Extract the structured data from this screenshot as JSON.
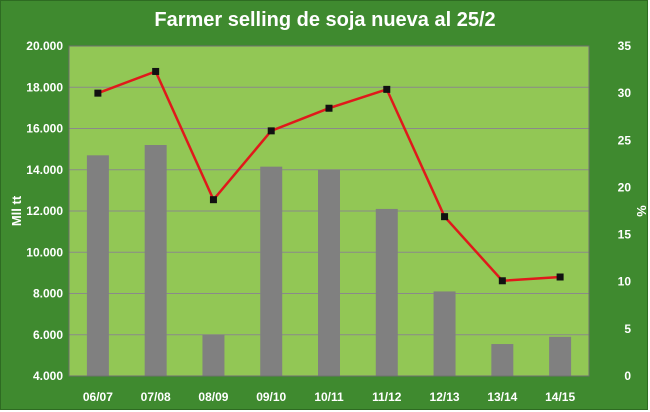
{
  "chart_data": {
    "type": "bar",
    "title": "Farmer selling de soja nueva al 25/2",
    "ylabel": "Mll tt",
    "y2label": "%",
    "categories": [
      "06/07",
      "07/08",
      "08/09",
      "09/10",
      "10/11",
      "11/12",
      "12/13",
      "13/14",
      "14/15"
    ],
    "ylim": [
      4000,
      20000
    ],
    "y_ticks": [
      "4.000",
      "6.000",
      "8.000",
      "10.000",
      "12.000",
      "14.000",
      "16.000",
      "18.000",
      "20.000"
    ],
    "y2lim": [
      0,
      35
    ],
    "y2_ticks": [
      "0",
      "5",
      "10",
      "15",
      "20",
      "25",
      "30",
      "35"
    ],
    "grid": true,
    "series": [
      {
        "type": "bar",
        "axis": "left",
        "values": [
          14700,
          15200,
          6000,
          14150,
          14000,
          12100,
          8100,
          5550,
          5900
        ]
      },
      {
        "type": "line",
        "axis": "right",
        "values": [
          30,
          32.3,
          18.7,
          26,
          28.4,
          30.4,
          16.9,
          10.1,
          10.5
        ]
      }
    ],
    "colors": {
      "background": "#3f8a2f",
      "plot_area": "#92c755",
      "bars": "#808080",
      "line": "#e0191b",
      "markers": "#111111"
    }
  }
}
